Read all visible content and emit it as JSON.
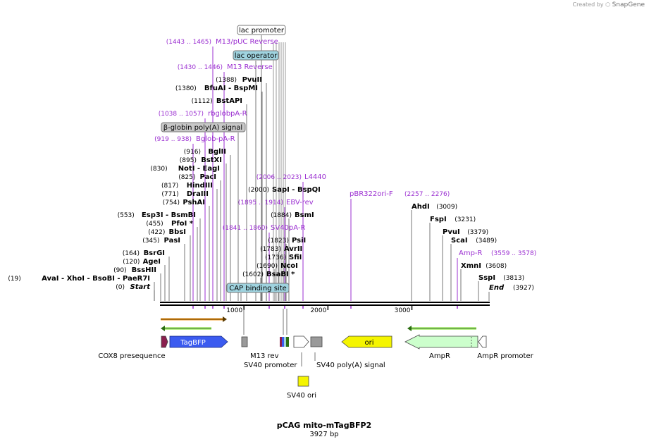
{
  "watermark": {
    "prefix": "Created by",
    "brand": "SnapGene"
  },
  "title": "pCAG mito-mTagBFP2",
  "subtitle": "3927 bp",
  "total_bp": 3927,
  "ticks": [
    {
      "bp": 1000,
      "label": "1000"
    },
    {
      "bp": 2000,
      "label": "2000"
    },
    {
      "bp": 3000,
      "label": "3000"
    }
  ],
  "colors": {
    "primer": "#9b2fd1",
    "tagbfp": "#3b5bf0",
    "ori": "#f5f500",
    "ampr": "#ccffcc",
    "orange": "#f59a1e",
    "green": "#3a9a22",
    "cox8": "#8a1f4e"
  },
  "left_sites": [
    {
      "name": "End",
      "pos": "(3927)"
    },
    {
      "name": "Start",
      "pos": "(0)"
    }
  ],
  "sites": [
    {
      "id": "s-sspi",
      "name": "SspI",
      "pos": "(3813)",
      "bp": 3813,
      "side": "right"
    },
    {
      "id": "s-xmni",
      "name": "XmnI",
      "pos": "(3608)",
      "bp": 3608,
      "side": "right"
    },
    {
      "id": "s-scai",
      "name": "ScaI",
      "pos": "(3489)",
      "bp": 3489,
      "side": "right"
    },
    {
      "id": "s-pvui",
      "name": "PvuI",
      "pos": "(3379)",
      "bp": 3379,
      "side": "right"
    },
    {
      "id": "s-fspi",
      "name": "FspI",
      "pos": "(3231)",
      "bp": 3231,
      "side": "right"
    },
    {
      "id": "s-ahdi",
      "name": "AhdI",
      "pos": "(3009)",
      "bp": 3009,
      "side": "right"
    },
    {
      "id": "s-start",
      "name": "Start",
      "pos": "(0)",
      "bp": 0,
      "side": "left"
    },
    {
      "id": "s-avai",
      "name": "AvaI - XhoI - BsoBI - PaeR7I",
      "pos": "(19)",
      "bp": 19,
      "side": "left"
    },
    {
      "id": "s-bsshii",
      "name": "BssHII",
      "pos": "(90)",
      "bp": 90,
      "side": "left"
    },
    {
      "id": "s-agei",
      "name": "AgeI",
      "pos": "(120)",
      "bp": 120,
      "side": "left"
    },
    {
      "id": "s-bsrgi",
      "name": "BsrGI",
      "pos": "(164)",
      "bp": 164,
      "side": "left"
    },
    {
      "id": "s-pasi",
      "name": "PasI",
      "pos": "(345)",
      "bp": 345,
      "side": "left"
    },
    {
      "id": "s-bbsi",
      "name": "BbsI",
      "pos": "(422)",
      "bp": 422,
      "side": "left"
    },
    {
      "id": "s-pfoi",
      "name": "PfoI *",
      "pos": "(455)",
      "bp": 455,
      "side": "left"
    },
    {
      "id": "s-esp3i",
      "name": "Esp3I - BsmBI",
      "pos": "(553)",
      "bp": 553,
      "side": "left"
    },
    {
      "id": "s-pshai",
      "name": "PshAI",
      "pos": "(754)",
      "bp": 754,
      "side": "left"
    },
    {
      "id": "s-draiii",
      "name": "DraIII",
      "pos": "(771)",
      "bp": 771,
      "side": "left"
    },
    {
      "id": "s-hindiii",
      "name": "HindIII",
      "pos": "(817)",
      "bp": 817,
      "side": "left"
    },
    {
      "id": "s-paci",
      "name": "PacI",
      "pos": "(825)",
      "bp": 825,
      "side": "left"
    },
    {
      "id": "s-noti",
      "name": "NotI - EagI",
      "pos": "(830)",
      "bp": 830,
      "side": "left"
    },
    {
      "id": "s-bstxi",
      "name": "BstXI",
      "pos": "(895)",
      "bp": 895,
      "side": "left"
    },
    {
      "id": "s-bglii",
      "name": "BglII",
      "pos": "(916)",
      "bp": 916,
      "side": "left"
    },
    {
      "id": "s-bstapi",
      "name": "BstAPI",
      "pos": "(1112)",
      "bp": 1112,
      "side": "left"
    },
    {
      "id": "s-bfuai",
      "name": "BfuAI - BspMI",
      "pos": "(1380)",
      "bp": 1380,
      "side": "left"
    },
    {
      "id": "s-pvuii",
      "name": "PvuII",
      "pos": "(1388)",
      "bp": 1388,
      "side": "left"
    },
    {
      "id": "s-bsabi",
      "name": "BsaBI *",
      "pos": "(1602)",
      "bp": 1602,
      "side": "right"
    },
    {
      "id": "s-ncoi",
      "name": "NcoI",
      "pos": "(1690)",
      "bp": 1690,
      "side": "right"
    },
    {
      "id": "s-sfii",
      "name": "SfiI",
      "pos": "(1736)",
      "bp": 1736,
      "side": "right"
    },
    {
      "id": "s-avrii",
      "name": "AvrII",
      "pos": "(1783)",
      "bp": 1783,
      "side": "right"
    },
    {
      "id": "s-psii",
      "name": "PsiI",
      "pos": "(1823)",
      "bp": 1823,
      "side": "right"
    },
    {
      "id": "s-bsmi",
      "name": "BsmI",
      "pos": "(1884)",
      "bp": 1884,
      "side": "right"
    },
    {
      "id": "s-sapi",
      "name": "SapI - BspQI",
      "pos": "(2000)",
      "bp": 2000,
      "side": "right"
    }
  ],
  "primers": [
    {
      "id": "p-m13puc",
      "name": "M13/pUC Reverse",
      "range": "(1443 .. 1465)",
      "bp": 1454
    },
    {
      "id": "p-m13rev",
      "name": "M13 Reverse",
      "range": "(1430 .. 1446)",
      "bp": 1438
    },
    {
      "id": "p-rbglob",
      "name": "rbglobpA-R",
      "range": "(1038 .. 1057)",
      "bp": 1048
    },
    {
      "id": "p-bglob",
      "name": "Bglob-pA-R",
      "range": "(919 .. 938)",
      "bp": 928
    },
    {
      "id": "p-l4440",
      "name": "L4440",
      "range": "(2006 .. 2023)",
      "bp": 2015
    },
    {
      "id": "p-ebv",
      "name": "EBV-rev",
      "range": "(1895 .. 1914)",
      "bp": 1905
    },
    {
      "id": "p-sv40pa",
      "name": "SV40pA-R",
      "range": "(1841 .. 1860)",
      "bp": 1850
    },
    {
      "id": "p-pbr322",
      "name": "pBR322ori-F",
      "range": "(2257 .. 2276)",
      "bp": 2266
    },
    {
      "id": "p-ampr",
      "name": "Amp-R",
      "range": "(3559 .. 3578)",
      "bp": 3568
    }
  ],
  "features_boxed": [
    {
      "id": "f-lacpromoter",
      "name": "lac promoter"
    },
    {
      "id": "f-lacoperator",
      "name": "lac operator"
    },
    {
      "id": "f-bglobin",
      "name": "β-globin poly(A) signal"
    },
    {
      "id": "f-cap",
      "name": "CAP binding site"
    }
  ],
  "features": {
    "tagbfp": "TagBFP",
    "ori": "ori",
    "cox8": "COX8 presequence",
    "m13rev": "M13 rev",
    "sv40prom": "SV40 promoter",
    "sv40pa": "SV40 poly(A) signal",
    "sv40ori": "SV40 ori",
    "ampr": "AmpR",
    "amprprom": "AmpR promoter"
  }
}
